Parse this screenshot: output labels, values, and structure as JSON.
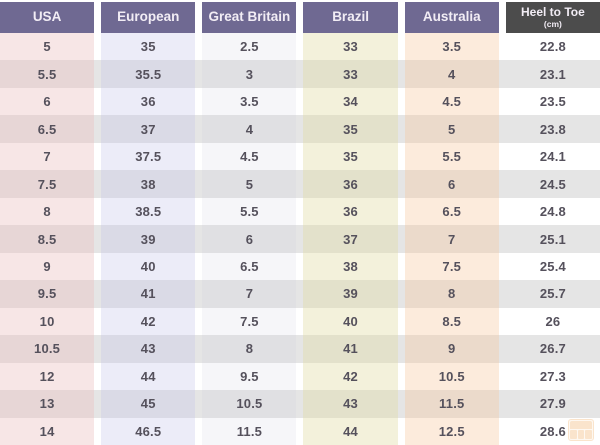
{
  "chart_data": {
    "type": "table",
    "columns": [
      {
        "label": "USA"
      },
      {
        "label": "European"
      },
      {
        "label": "Great Britain"
      },
      {
        "label": "Brazil"
      },
      {
        "label": "Australia"
      },
      {
        "label": "Heel to Toe",
        "sublabel": "(cm)"
      }
    ],
    "rows": [
      [
        "5",
        "35",
        "2.5",
        "33",
        "3.5",
        "22.8"
      ],
      [
        "5.5",
        "35.5",
        "3",
        "33",
        "4",
        "23.1"
      ],
      [
        "6",
        "36",
        "3.5",
        "34",
        "4.5",
        "23.5"
      ],
      [
        "6.5",
        "37",
        "4",
        "35",
        "5",
        "23.8"
      ],
      [
        "7",
        "37.5",
        "4.5",
        "35",
        "5.5",
        "24.1"
      ],
      [
        "7.5",
        "38",
        "5",
        "36",
        "6",
        "24.5"
      ],
      [
        "8",
        "38.5",
        "5.5",
        "36",
        "6.5",
        "24.8"
      ],
      [
        "8.5",
        "39",
        "6",
        "37",
        "7",
        "25.1"
      ],
      [
        "9",
        "40",
        "6.5",
        "38",
        "7.5",
        "25.4"
      ],
      [
        "9.5",
        "41",
        "7",
        "39",
        "8",
        "25.7"
      ],
      [
        "10",
        "42",
        "7.5",
        "40",
        "8.5",
        "26"
      ],
      [
        "10.5",
        "43",
        "8",
        "41",
        "9",
        "26.7"
      ],
      [
        "12",
        "44",
        "9.5",
        "42",
        "10.5",
        "27.3"
      ],
      [
        "13",
        "45",
        "10.5",
        "43",
        "11.5",
        "27.9"
      ],
      [
        "14",
        "46.5",
        "11.5",
        "44",
        "12.5",
        "28.6"
      ]
    ],
    "legend": "off",
    "grid": "column-tinted rows with alternating stripes"
  },
  "colors": {
    "header_bg": "#6f6992",
    "header_text": "#f2edf5",
    "heel_header_bg": "#4c4c4c",
    "watermark": "#f0a04a",
    "column_tints": {
      "usa": "#f8e9e9",
      "european": "#ebebf6",
      "great_britain": "#f5f5f8",
      "brazil": "#f3f1db",
      "australia": "#fae8da",
      "heel_to_toe": "#ffffff"
    }
  },
  "icons": {
    "watermark": "table-logo-icon"
  }
}
